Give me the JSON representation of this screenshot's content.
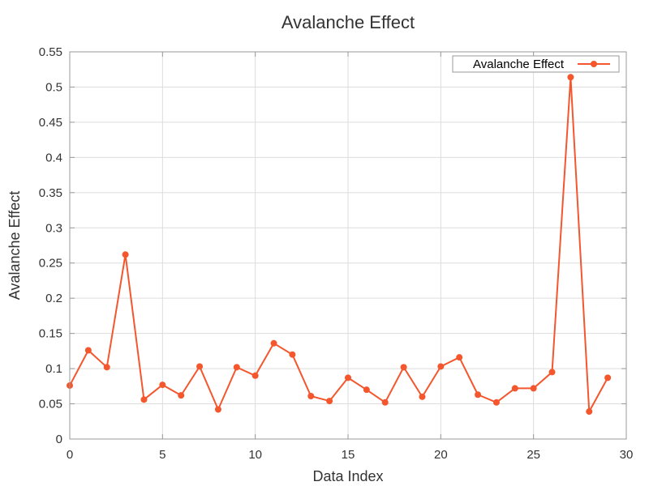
{
  "chart_data": {
    "type": "line",
    "title": "Avalanche Effect",
    "xlabel": "Data Index",
    "ylabel": "Avalanche Effect",
    "xlim": [
      0,
      30
    ],
    "ylim": [
      0,
      0.55
    ],
    "x_ticks": [
      0,
      5,
      10,
      15,
      20,
      25,
      30
    ],
    "x_tick_labels": [
      "0",
      "5",
      "10",
      "15",
      "20",
      "25",
      "30"
    ],
    "y_ticks": [
      0,
      0.05,
      0.1,
      0.15,
      0.2,
      0.25,
      0.3,
      0.35,
      0.4,
      0.45,
      0.5,
      0.55
    ],
    "y_tick_labels": [
      "0",
      "0.05",
      "0.1",
      "0.15",
      "0.2",
      "0.25",
      "0.3",
      "0.35",
      "0.4",
      "0.45",
      "0.5",
      "0.55"
    ],
    "grid": true,
    "legend_position": "top-right",
    "series": [
      {
        "name": "Avalanche Effect",
        "color": "#f4562d",
        "x": [
          0,
          1,
          2,
          3,
          4,
          5,
          6,
          7,
          8,
          9,
          10,
          11,
          12,
          13,
          14,
          15,
          16,
          17,
          18,
          19,
          20,
          21,
          22,
          23,
          24,
          25,
          26,
          27,
          28,
          29
        ],
        "values": [
          0.076,
          0.126,
          0.102,
          0.262,
          0.056,
          0.077,
          0.062,
          0.103,
          0.042,
          0.102,
          0.09,
          0.136,
          0.12,
          0.061,
          0.054,
          0.087,
          0.07,
          0.052,
          0.102,
          0.06,
          0.103,
          0.116,
          0.063,
          0.052,
          0.072,
          0.072,
          0.095,
          0.514,
          0.039,
          0.087
        ]
      }
    ]
  }
}
